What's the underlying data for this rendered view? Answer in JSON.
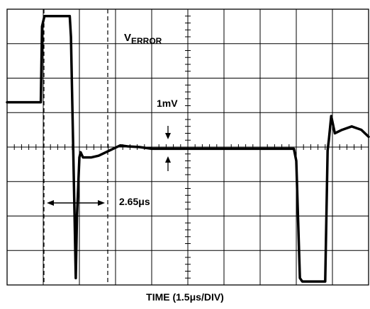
{
  "chart_data": {
    "type": "line",
    "title": "",
    "xlabel": "TIME (1.5μs/DIV)",
    "ylabel": "",
    "grid": true,
    "grid_divisions": {
      "x": 10,
      "y": 8
    },
    "time_per_div_us": 1.5,
    "xlim_us": [
      0,
      15
    ],
    "series": [
      {
        "name": "V_ERROR",
        "x_us": [
          0,
          1.4,
          1.45,
          1.55,
          2.6,
          2.65,
          2.8,
          2.85,
          2.9,
          3.0,
          3.05,
          3.15,
          3.5,
          3.8,
          4.1,
          4.4,
          4.7,
          5.0,
          5.5,
          6.0,
          7.0,
          8.0,
          9.0,
          11.9,
          12.0,
          12.15,
          12.25,
          12.35,
          13.2,
          13.25,
          13.3,
          13.35,
          13.45,
          13.6,
          13.9,
          14.3,
          14.7,
          15.0
        ],
        "y_div": [
          1.3,
          1.3,
          3.5,
          3.8,
          3.8,
          3.2,
          -2.0,
          -3.8,
          -2.0,
          -0.3,
          -0.15,
          -0.3,
          -0.3,
          -0.25,
          -0.15,
          -0.05,
          0.05,
          0.02,
          0.0,
          -0.05,
          -0.05,
          -0.05,
          -0.05,
          -0.05,
          -0.4,
          -3.8,
          -3.9,
          -3.9,
          -3.9,
          -2.0,
          -0.1,
          0.2,
          0.9,
          0.4,
          0.5,
          0.6,
          0.5,
          0.3
        ]
      }
    ],
    "annotations": {
      "trace_label_main": "V",
      "trace_label_sub": "ERROR",
      "scale_label": "1mV",
      "interval_label": "2.65μs",
      "interval_us": 2.65
    }
  }
}
